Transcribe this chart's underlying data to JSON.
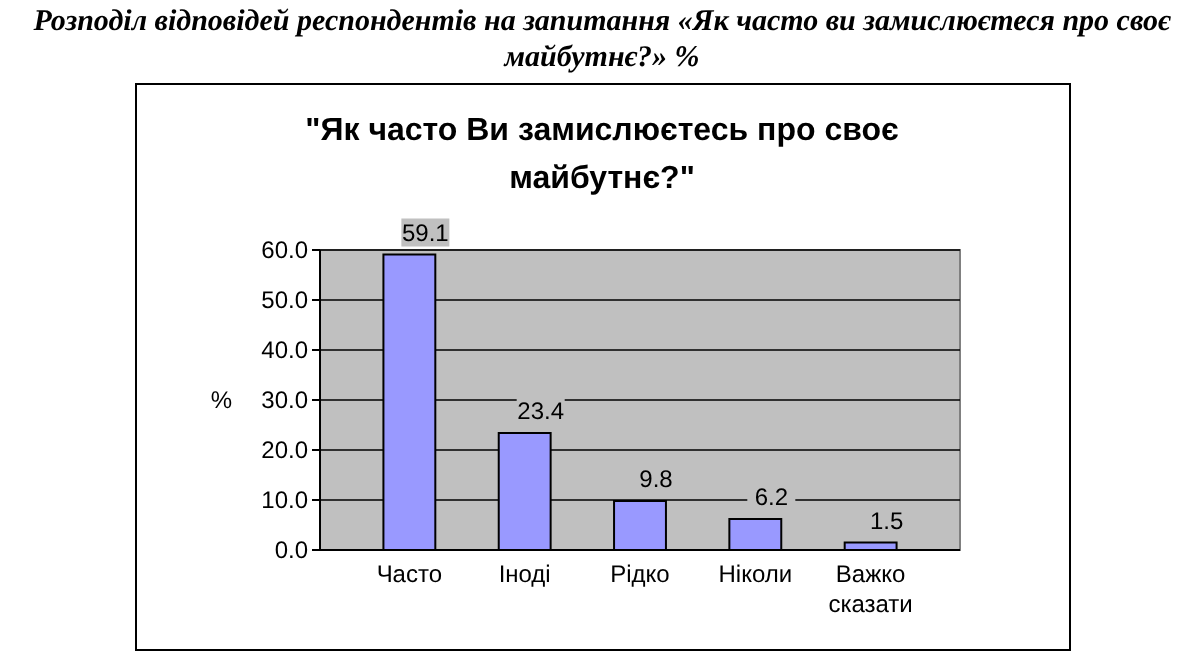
{
  "chart_data": {
    "type": "bar",
    "title": "Розподіл відповідей респондентів на запитання «Як часто ви замислюєтеся про своє майбутнє?» %",
    "subtitle": "\"Як часто Ви замислюєтесь про своє майбутнє?\"",
    "ylabel": "%",
    "categories": [
      "Часто",
      "Іноді",
      "Рідко",
      "Ніколи",
      "Важко сказати"
    ],
    "values": [
      59.1,
      23.4,
      9.8,
      6.2,
      1.5
    ],
    "color": "#9999ff",
    "ylim": [
      0,
      60
    ],
    "yticks": [
      {
        "value": 0,
        "label": "0.0"
      },
      {
        "value": 10,
        "label": "10.0"
      },
      {
        "value": 20,
        "label": "20.0"
      },
      {
        "value": 30,
        "label": "30.0"
      },
      {
        "value": 40,
        "label": "40.0"
      },
      {
        "value": 50,
        "label": "50.0"
      },
      {
        "value": 60,
        "label": "60.0"
      }
    ],
    "grid": "y",
    "data_labels": true
  }
}
